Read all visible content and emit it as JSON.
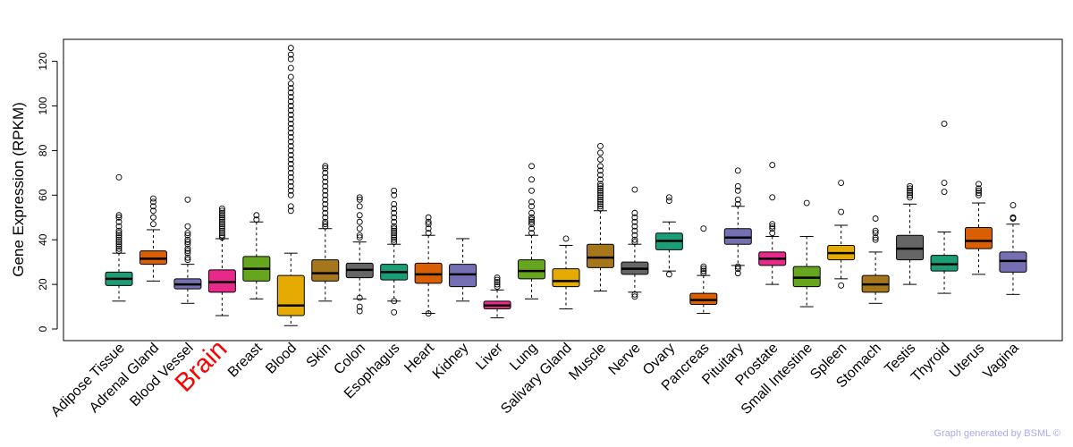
{
  "chart_data": {
    "type": "box",
    "ylabel": "Gene Expression (RPKM)",
    "xlabel": "",
    "ylim": [
      -5,
      130
    ],
    "yticks": [
      0,
      20,
      40,
      60,
      80,
      100,
      120
    ],
    "highlight_category": "Brain",
    "highlight_color": "#ff0000",
    "credit": "Graph generated by BSML ©",
    "groups": [
      {
        "name": "Adipose Tissue",
        "color": "#1b9e77",
        "whisker_low": 12.5,
        "q1": 19.5,
        "median": 22.5,
        "q3": 25.5,
        "whisker_high": 34,
        "outliers": [
          35,
          36,
          37,
          38,
          39,
          40,
          41,
          42,
          43,
          44,
          46,
          48,
          50,
          51,
          68
        ]
      },
      {
        "name": "Adrenal Gland",
        "color": "#d95f02",
        "whisker_low": 21.5,
        "q1": 29,
        "median": 31.5,
        "q3": 35,
        "whisker_high": 44.5,
        "outliers": [
          47,
          50,
          53,
          55,
          57,
          58.5
        ]
      },
      {
        "name": "Blood Vessel",
        "color": "#7570b3",
        "whisker_low": 11.5,
        "q1": 18,
        "median": 20,
        "q3": 22.5,
        "whisker_high": 29,
        "outliers": [
          31,
          32,
          34,
          35,
          36,
          38,
          39,
          40,
          42,
          43,
          46,
          58
        ]
      },
      {
        "name": "Brain",
        "color": "#e7298a",
        "whisker_low": 6,
        "q1": 16.5,
        "median": 21,
        "q3": 26.5,
        "whisker_high": 40.5,
        "outliers": [
          41,
          42,
          43,
          44,
          45,
          46,
          47,
          48,
          49,
          50,
          51,
          52,
          53,
          54
        ]
      },
      {
        "name": "Breast",
        "color": "#66a61e",
        "whisker_low": 13.5,
        "q1": 21.5,
        "median": 27,
        "q3": 32.5,
        "whisker_high": 48,
        "outliers": [
          49,
          51
        ]
      },
      {
        "name": "Blood",
        "color": "#e6ab02",
        "whisker_low": 1.5,
        "q1": 6,
        "median": 10.5,
        "q3": 24,
        "whisker_high": 34,
        "outliers": [
          53,
          55,
          60,
          62,
          64,
          66,
          68,
          70,
          72,
          74,
          76,
          78,
          80,
          82,
          84,
          86,
          88,
          90,
          92,
          94,
          96,
          98,
          100,
          102,
          104,
          106,
          108,
          110,
          113,
          117,
          121,
          123,
          126
        ]
      },
      {
        "name": "Skin",
        "color": "#a6761d",
        "whisker_low": 12.5,
        "q1": 21.5,
        "median": 25,
        "q3": 31,
        "whisker_high": 45,
        "outliers": [
          46,
          47,
          48,
          50,
          52,
          54,
          56,
          58,
          60,
          62,
          64,
          66,
          68,
          70,
          72,
          73
        ]
      },
      {
        "name": "Colon",
        "color": "#666666",
        "whisker_low": 13.5,
        "q1": 23,
        "median": 26.5,
        "q3": 29.5,
        "whisker_high": 39,
        "outliers": [
          8,
          10,
          14,
          41,
          42,
          45,
          48,
          51,
          55,
          58,
          59
        ]
      },
      {
        "name": "Esophagus",
        "color": "#1b9e77",
        "whisker_low": 12.5,
        "q1": 22,
        "median": 25.5,
        "q3": 29,
        "whisker_high": 38,
        "outliers": [
          7.5,
          12.5,
          39,
          40,
          41,
          42,
          43,
          44,
          45,
          46,
          48,
          50,
          52,
          54,
          56,
          60,
          62
        ]
      },
      {
        "name": "Heart",
        "color": "#d95f02",
        "whisker_low": 7,
        "q1": 20.5,
        "median": 24.5,
        "q3": 29.5,
        "whisker_high": 42,
        "outliers": [
          7,
          43,
          45,
          47,
          48,
          50
        ]
      },
      {
        "name": "Kidney",
        "color": "#7570b3",
        "whisker_low": 12.5,
        "q1": 19,
        "median": 24.5,
        "q3": 29,
        "whisker_high": 40.5,
        "outliers": []
      },
      {
        "name": "Liver",
        "color": "#e7298a",
        "whisker_low": 5,
        "q1": 9,
        "median": 10.5,
        "q3": 12.5,
        "whisker_high": 17.5,
        "outliers": [
          19,
          20,
          21,
          22,
          23
        ]
      },
      {
        "name": "Lung",
        "color": "#66a61e",
        "whisker_low": 13.5,
        "q1": 22.5,
        "median": 26,
        "q3": 31,
        "whisker_high": 42,
        "outliers": [
          43,
          45,
          47,
          48,
          49,
          50,
          52,
          55,
          57,
          62,
          67,
          73
        ]
      },
      {
        "name": "Salivary Gland",
        "color": "#e6ab02",
        "whisker_low": 9,
        "q1": 19,
        "median": 21.5,
        "q3": 27,
        "whisker_high": 37.5,
        "outliers": [
          40.5
        ]
      },
      {
        "name": "Muscle",
        "color": "#a6761d",
        "whisker_low": 17,
        "q1": 27.5,
        "median": 32,
        "q3": 38,
        "whisker_high": 53,
        "outliers": [
          54,
          55,
          56,
          57,
          58,
          59,
          60,
          61,
          62,
          63,
          64,
          65,
          67,
          69,
          71,
          73,
          76,
          79,
          82
        ]
      },
      {
        "name": "Nerve",
        "color": "#666666",
        "whisker_low": 16.5,
        "q1": 24.5,
        "median": 27,
        "q3": 30,
        "whisker_high": 38,
        "outliers": [
          14.5,
          15.5,
          39,
          40,
          42,
          44,
          46,
          48,
          50,
          52,
          62.5
        ]
      },
      {
        "name": "Ovary",
        "color": "#1b9e77",
        "whisker_low": 26,
        "q1": 35.5,
        "median": 39.5,
        "q3": 43,
        "whisker_high": 48,
        "outliers": [
          24.5,
          57.5,
          59
        ]
      },
      {
        "name": "Pancreas",
        "color": "#d95f02",
        "whisker_low": 7,
        "q1": 11,
        "median": 13,
        "q3": 16,
        "whisker_high": 24,
        "outliers": [
          25,
          26,
          27,
          28,
          45
        ]
      },
      {
        "name": "Pituitary",
        "color": "#7570b3",
        "whisker_low": 28.5,
        "q1": 38,
        "median": 41,
        "q3": 45,
        "whisker_high": 55,
        "outliers": [
          25,
          27,
          28,
          56,
          58,
          62,
          64,
          71
        ]
      },
      {
        "name": "Prostate",
        "color": "#e7298a",
        "whisker_low": 20,
        "q1": 28.5,
        "median": 31.5,
        "q3": 34.5,
        "whisker_high": 41.5,
        "outliers": [
          43,
          45,
          46,
          47,
          59,
          73.5
        ]
      },
      {
        "name": "Small Intestine",
        "color": "#66a61e",
        "whisker_low": 10,
        "q1": 19,
        "median": 23,
        "q3": 28,
        "whisker_high": 41.5,
        "outliers": [
          56.5
        ]
      },
      {
        "name": "Spleen",
        "color": "#e6ab02",
        "whisker_low": 22.5,
        "q1": 31,
        "median": 34,
        "q3": 37.5,
        "whisker_high": 46.5,
        "outliers": [
          19.5,
          52.5,
          65.5
        ]
      },
      {
        "name": "Stomach",
        "color": "#a6761d",
        "whisker_low": 11.5,
        "q1": 16.5,
        "median": 20,
        "q3": 24,
        "whisker_high": 34.5,
        "outliers": [
          40,
          41,
          43,
          44,
          49.5
        ]
      },
      {
        "name": "Testis",
        "color": "#666666",
        "whisker_low": 20,
        "q1": 31,
        "median": 36,
        "q3": 42,
        "whisker_high": 56,
        "outliers": [
          59,
          60,
          61,
          62,
          63,
          64
        ]
      },
      {
        "name": "Thyroid",
        "color": "#1b9e77",
        "whisker_low": 16,
        "q1": 26,
        "median": 29,
        "q3": 33,
        "whisker_high": 43.5,
        "outliers": [
          61.5,
          65.5,
          92
        ]
      },
      {
        "name": "Uterus",
        "color": "#d95f02",
        "whisker_low": 24.5,
        "q1": 36,
        "median": 39.5,
        "q3": 45.5,
        "whisker_high": 56.5,
        "outliers": [
          60,
          61,
          62,
          63,
          65
        ]
      },
      {
        "name": "Vagina",
        "color": "#7570b3",
        "whisker_low": 15.5,
        "q1": 25.5,
        "median": 30.5,
        "q3": 34.5,
        "whisker_high": 47,
        "outliers": [
          49.5,
          50,
          55.5
        ]
      }
    ]
  }
}
